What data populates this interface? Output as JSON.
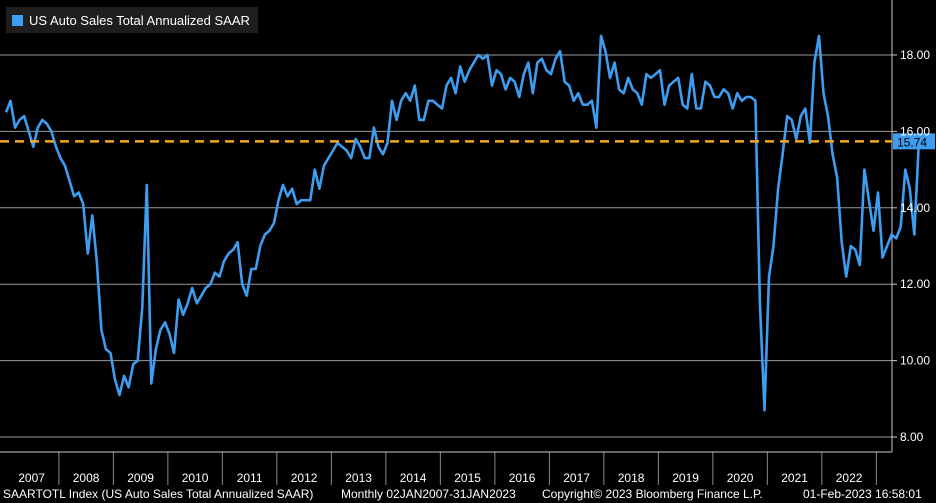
{
  "chart_data": {
    "type": "line",
    "legend": {
      "label": "US Auto Sales Total Annualized SAAR",
      "color": "#3d9df0",
      "placement": "top-left"
    },
    "ylim": [
      7.7,
      19.4
    ],
    "yticks": [
      "8.00",
      "10.00",
      "12.00",
      "14.00",
      "16.00",
      "18.00"
    ],
    "xticks": [
      "2007",
      "2008",
      "2009",
      "2010",
      "2011",
      "2012",
      "2013",
      "2014",
      "2015",
      "2016",
      "2017",
      "2018",
      "2019",
      "2020",
      "2021",
      "2022"
    ],
    "grid": true,
    "reference_line": {
      "value": 15.74,
      "label": "15.74",
      "color": "#f5a623",
      "style": "dashed"
    },
    "series": [
      {
        "color": "#3d9df0",
        "x_start": "2007-01",
        "frequency": "monthly",
        "values": [
          16.5,
          16.8,
          16.1,
          16.3,
          16.4,
          16.0,
          15.6,
          16.1,
          16.3,
          16.2,
          16.0,
          15.6,
          15.3,
          15.1,
          14.7,
          14.3,
          14.4,
          14.1,
          12.8,
          13.8,
          12.6,
          10.8,
          10.3,
          10.2,
          9.5,
          9.1,
          9.6,
          9.3,
          9.9,
          10.0,
          11.4,
          14.6,
          9.4,
          10.3,
          10.8,
          11.0,
          10.7,
          10.2,
          11.6,
          11.2,
          11.5,
          11.9,
          11.5,
          11.7,
          11.9,
          12.0,
          12.3,
          12.2,
          12.6,
          12.8,
          12.9,
          13.1,
          12.0,
          11.7,
          12.4,
          12.4,
          13.0,
          13.3,
          13.4,
          13.6,
          14.2,
          14.6,
          14.3,
          14.5,
          14.1,
          14.2,
          14.2,
          14.2,
          15.0,
          14.5,
          15.1,
          15.3,
          15.5,
          15.7,
          15.6,
          15.5,
          15.3,
          15.8,
          15.6,
          15.3,
          15.3,
          16.1,
          15.6,
          15.4,
          15.7,
          16.8,
          16.3,
          16.8,
          17.0,
          16.8,
          17.2,
          16.3,
          16.3,
          16.8,
          16.8,
          16.7,
          16.6,
          17.2,
          17.4,
          17.0,
          17.7,
          17.3,
          17.6,
          17.8,
          18.0,
          17.9,
          18.0,
          17.2,
          17.6,
          17.5,
          17.1,
          17.4,
          17.3,
          16.9,
          17.5,
          17.8,
          17.0,
          17.8,
          17.9,
          17.6,
          17.5,
          17.9,
          18.1,
          17.3,
          17.2,
          16.8,
          17.0,
          16.7,
          16.7,
          16.8,
          16.1,
          18.5,
          18.1,
          17.4,
          17.8,
          17.1,
          17.0,
          17.4,
          17.1,
          17.0,
          16.7,
          17.5,
          17.4,
          17.5,
          17.6,
          16.7,
          17.2,
          17.3,
          17.4,
          16.7,
          16.6,
          17.5,
          16.6,
          16.6,
          17.3,
          17.2,
          16.9,
          16.9,
          17.1,
          17.0,
          16.6,
          17.0,
          16.8,
          16.9,
          16.9,
          16.8,
          11.5,
          8.7,
          12.2,
          13.0,
          14.5,
          15.4,
          16.4,
          16.3,
          15.8,
          16.4,
          16.6,
          15.7,
          17.8,
          18.5,
          17.0,
          16.4,
          15.4,
          14.8,
          13.1,
          12.2,
          13.0,
          12.9,
          12.5,
          15.0,
          14.2,
          13.4,
          14.4,
          12.7,
          13.0,
          13.3,
          13.2,
          13.5,
          15.0,
          14.5,
          13.3,
          15.74
        ]
      }
    ]
  },
  "footer": {
    "ticker": "SAARTOTL Index (US Auto Sales Total Annualized SAAR)",
    "range": "Monthly 02JAN2007-31JAN2023",
    "copyright": "Copyright© 2023 Bloomberg Finance L.P.",
    "timestamp": "01-Feb-2023 16:58:01"
  }
}
